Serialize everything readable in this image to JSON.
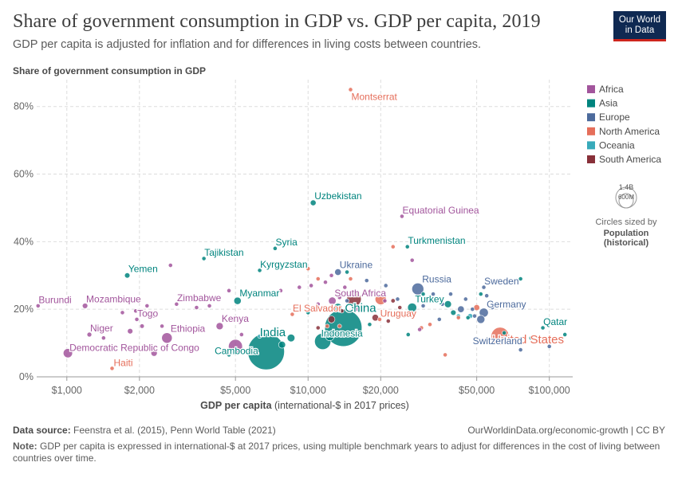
{
  "header": {
    "title": "Share of government consumption in GDP vs. GDP per capita, 2019",
    "subtitle": "GDP per capita is adjusted for inflation and for differences in living costs between countries.",
    "logo_line1": "Our World",
    "logo_line2": "in Data"
  },
  "footer": {
    "source_label": "Data source:",
    "source_text": "Feenstra et al. (2015), Penn World Table (2021)",
    "url_text": "OurWorldinData.org/economic-growth | CC BY",
    "note_label": "Note:",
    "note_text": "GDP per capita is expressed in international-$ at 2017 prices, using multiple benchmark years to adjust for differences in the cost of living between countries over time."
  },
  "colors": {
    "Africa": "#a2559c",
    "Asia": "#00847e",
    "Europe": "#4c6a9c",
    "North America": "#e56e5a",
    "Oceania": "#38aaba",
    "South America": "#883039"
  },
  "size_legend": {
    "big_label": "1.4B",
    "small_label": "600M",
    "caption1": "Circles sized by",
    "caption2": "Population",
    "caption3": "(historical)"
  },
  "chart_data": {
    "type": "scatter",
    "ylabel": "Share of government consumption in GDP",
    "xlabel_bold": "GDP per capita",
    "xlabel_rest": "(international-$ in 2017 prices)",
    "x_scale": "log",
    "xlim": [
      750,
      125000
    ],
    "ylim": [
      0,
      87
    ],
    "x_ticks": [
      {
        "v": 1000,
        "label": "$1,000"
      },
      {
        "v": 2000,
        "label": "$2,000"
      },
      {
        "v": 5000,
        "label": "$5,000"
      },
      {
        "v": 10000,
        "label": "$10,000"
      },
      {
        "v": 20000,
        "label": "$20,000"
      },
      {
        "v": 50000,
        "label": "$50,000"
      },
      {
        "v": 100000,
        "label": "$100,000"
      }
    ],
    "y_ticks": [
      {
        "v": 0,
        "label": "0%"
      },
      {
        "v": 20,
        "label": "20%"
      },
      {
        "v": 40,
        "label": "40%"
      },
      {
        "v": 60,
        "label": "60%"
      },
      {
        "v": 80,
        "label": "80%"
      }
    ],
    "grid": true,
    "legend_position": "right",
    "series": [
      {
        "name": "Africa",
        "points": [
          {
            "label": "Burundi",
            "x": 760,
            "y": 21,
            "pop": 11.5,
            "label_side": "right"
          },
          {
            "label": "Mozambique",
            "x": 1190,
            "y": 21,
            "pop": 30
          },
          {
            "label": "Niger",
            "x": 1240,
            "y": 12.5,
            "pop": 23
          },
          {
            "label": "Democratic Republic of Congo",
            "x": 1010,
            "y": 7,
            "pop": 87
          },
          {
            "label": "Togo",
            "x": 1950,
            "y": 17,
            "pop": 8
          },
          {
            "label": "Zimbabwe",
            "x": 2850,
            "y": 21.5,
            "pop": 14.6
          },
          {
            "label": "Ethiopia",
            "x": 2600,
            "y": 11.5,
            "pop": 112
          },
          {
            "label": "Kenya",
            "x": 4300,
            "y": 15,
            "pop": 52
          },
          {
            "label": "South Africa",
            "x": 12600,
            "y": 22.5,
            "pop": 58
          },
          {
            "label": "Equatorial Guinea",
            "x": 24500,
            "y": 47.5,
            "pop": 1.4
          },
          {
            "x": 1420,
            "y": 11.5,
            "pop": 10
          },
          {
            "x": 1830,
            "y": 13.5,
            "pop": 30
          },
          {
            "x": 2050,
            "y": 15,
            "pop": 20
          },
          {
            "x": 2300,
            "y": 18,
            "pop": 5
          },
          {
            "x": 2480,
            "y": 15,
            "pop": 6
          },
          {
            "x": 2150,
            "y": 21,
            "pop": 5
          },
          {
            "x": 1930,
            "y": 19.5,
            "pop": 4
          },
          {
            "x": 1700,
            "y": 19,
            "pop": 3
          },
          {
            "x": 2690,
            "y": 33,
            "pop": 2
          },
          {
            "x": 3450,
            "y": 20.5,
            "pop": 4
          },
          {
            "x": 3900,
            "y": 21,
            "pop": 5
          },
          {
            "x": 2300,
            "y": 7,
            "pop": 40
          },
          {
            "x": 4700,
            "y": 25.5,
            "pop": 8
          },
          {
            "x": 5000,
            "y": 9,
            "pop": 200
          },
          {
            "x": 5300,
            "y": 12.5,
            "pop": 6
          },
          {
            "x": 7700,
            "y": 25.5,
            "pop": 4
          },
          {
            "x": 9200,
            "y": 26.5,
            "pop": 2.5
          },
          {
            "x": 10300,
            "y": 27,
            "pop": 2
          },
          {
            "x": 11000,
            "y": 21.5,
            "pop": 2
          },
          {
            "x": 11800,
            "y": 28,
            "pop": 4
          },
          {
            "x": 12500,
            "y": 30,
            "pop": 2
          },
          {
            "x": 13500,
            "y": 23.5,
            "pop": 1.3
          },
          {
            "x": 14200,
            "y": 26.5,
            "pop": 3
          },
          {
            "x": 16000,
            "y": 20,
            "pop": 2
          },
          {
            "x": 20800,
            "y": 22.5,
            "pop": 2
          },
          {
            "x": 27000,
            "y": 34.5,
            "pop": 1.3
          },
          {
            "x": 29000,
            "y": 14,
            "pop": 1
          }
        ]
      },
      {
        "name": "Asia",
        "points": [
          {
            "label": "Uzbekistan",
            "x": 10500,
            "y": 51.5,
            "pop": 33.6
          },
          {
            "label": "Syria",
            "x": 7300,
            "y": 38,
            "pop": 17
          },
          {
            "label": "Tajikistan",
            "x": 3700,
            "y": 35,
            "pop": 9.3
          },
          {
            "label": "Yemen",
            "x": 1780,
            "y": 30,
            "pop": 29
          },
          {
            "label": "Kyrgyzstan",
            "x": 6300,
            "y": 31.5,
            "pop": 6.4
          },
          {
            "label": "Myanmar",
            "x": 5100,
            "y": 22.5,
            "pop": 54
          },
          {
            "label": "Turkmenistan",
            "x": 25800,
            "y": 38.5,
            "pop": 6
          },
          {
            "label": "India",
            "x": 6700,
            "y": 7.5,
            "pop": 1366
          },
          {
            "label": "Cambodia",
            "x": 4700,
            "y": 6.5,
            "pop": 16.5
          },
          {
            "label": "China",
            "x": 14000,
            "y": 14.5,
            "pop": 1410
          },
          {
            "label": "Indonesia",
            "x": 11500,
            "y": 10.5,
            "pop": 270
          },
          {
            "label": "Turkey",
            "x": 27000,
            "y": 20.5,
            "pop": 83
          },
          {
            "label": "Qatar",
            "x": 94000,
            "y": 14.5,
            "pop": 2.8
          },
          {
            "x": 7800,
            "y": 9.5,
            "pop": 50
          },
          {
            "x": 8500,
            "y": 11.5,
            "pop": 60
          },
          {
            "x": 10000,
            "y": 19,
            "pop": 10
          },
          {
            "x": 12300,
            "y": 12,
            "pop": 80
          },
          {
            "x": 13300,
            "y": 20.5,
            "pop": 70
          },
          {
            "x": 15500,
            "y": 21,
            "pop": 40
          },
          {
            "x": 18000,
            "y": 15.5,
            "pop": 5
          },
          {
            "x": 26000,
            "y": 12.5,
            "pop": 10
          },
          {
            "x": 38000,
            "y": 21.5,
            "pop": 50
          },
          {
            "x": 40000,
            "y": 19,
            "pop": 30
          },
          {
            "x": 46000,
            "y": 17.5,
            "pop": 10
          },
          {
            "x": 52000,
            "y": 24.5,
            "pop": 5
          },
          {
            "x": 65000,
            "y": 13,
            "pop": 7
          },
          {
            "x": 76000,
            "y": 29,
            "pop": 4.3
          },
          {
            "x": 84000,
            "y": 11.5,
            "pop": 3
          },
          {
            "x": 116000,
            "y": 12.5,
            "pop": 1.5
          },
          {
            "x": 14500,
            "y": 31,
            "pop": 4
          },
          {
            "x": 30000,
            "y": 24.5,
            "pop": 3
          }
        ]
      },
      {
        "name": "Europe",
        "points": [
          {
            "label": "Ukraine",
            "x": 13300,
            "y": 31,
            "pop": 44
          },
          {
            "label": "Russia",
            "x": 28500,
            "y": 26,
            "pop": 144
          },
          {
            "label": "Sweden",
            "x": 53500,
            "y": 26.5,
            "pop": 10
          },
          {
            "label": "Germany",
            "x": 53500,
            "y": 19,
            "pop": 83
          },
          {
            "label": "Switzerland",
            "x": 76000,
            "y": 8,
            "pop": 8.6
          },
          {
            "x": 14500,
            "y": 22.5,
            "pop": 10
          },
          {
            "x": 17500,
            "y": 28.5,
            "pop": 3
          },
          {
            "x": 21000,
            "y": 27,
            "pop": 3
          },
          {
            "x": 23500,
            "y": 23,
            "pop": 4
          },
          {
            "x": 30000,
            "y": 21,
            "pop": 5
          },
          {
            "x": 33000,
            "y": 24.5,
            "pop": 4
          },
          {
            "x": 36000,
            "y": 21.5,
            "pop": 2
          },
          {
            "x": 39000,
            "y": 24.5,
            "pop": 10
          },
          {
            "x": 43000,
            "y": 20,
            "pop": 46
          },
          {
            "x": 45000,
            "y": 23,
            "pop": 5
          },
          {
            "x": 48000,
            "y": 20,
            "pop": 11
          },
          {
            "x": 49000,
            "y": 18,
            "pop": 17
          },
          {
            "x": 52000,
            "y": 17,
            "pop": 67
          },
          {
            "x": 55000,
            "y": 24,
            "pop": 9
          },
          {
            "x": 58000,
            "y": 20.5,
            "pop": 5.5
          },
          {
            "x": 100000,
            "y": 9,
            "pop": 5
          },
          {
            "x": 72000,
            "y": 21,
            "pop": 5.4
          },
          {
            "x": 35000,
            "y": 17,
            "pop": 10
          }
        ]
      },
      {
        "name": "North America",
        "points": [
          {
            "label": "Montserrat",
            "x": 15000,
            "y": 85,
            "pop": 0.005
          },
          {
            "label": "El Salvador",
            "x": 8600,
            "y": 18.5,
            "pop": 6.5
          },
          {
            "label": "Uruguay",
            "x": 19800,
            "y": 17,
            "pop": 3.5
          },
          {
            "label": "United States",
            "x": 62500,
            "y": 12,
            "pop": 328
          },
          {
            "label": "Haiti",
            "x": 1540,
            "y": 2.5,
            "pop": 11.3
          },
          {
            "x": 10000,
            "y": 32,
            "pop": 0.1
          },
          {
            "x": 11000,
            "y": 29,
            "pop": 1.3
          },
          {
            "x": 12000,
            "y": 15,
            "pop": 5
          },
          {
            "x": 13500,
            "y": 15,
            "pop": 11
          },
          {
            "x": 15000,
            "y": 29,
            "pop": 0.2
          },
          {
            "x": 20000,
            "y": 23,
            "pop": 127
          },
          {
            "x": 22500,
            "y": 38.5,
            "pop": 0.5
          },
          {
            "x": 25000,
            "y": 18,
            "pop": 0.4
          },
          {
            "x": 29500,
            "y": 14.5,
            "pop": 2
          },
          {
            "x": 32000,
            "y": 15.5,
            "pop": 0.5
          },
          {
            "x": 37000,
            "y": 6.5,
            "pop": 0.4
          },
          {
            "x": 50000,
            "y": 20.5,
            "pop": 37
          },
          {
            "x": 42000,
            "y": 17.5,
            "pop": 0.3
          }
        ]
      },
      {
        "name": "Oceania",
        "points": [
          {
            "x": 47000,
            "y": 18,
            "pop": 25
          },
          {
            "x": 42000,
            "y": 18,
            "pop": 5
          },
          {
            "x": 4900,
            "y": 7,
            "pop": 9
          },
          {
            "x": 6300,
            "y": 12,
            "pop": 0.9
          }
        ]
      },
      {
        "name": "South America",
        "points": [
          {
            "x": 11000,
            "y": 14.5,
            "pop": 11.5
          },
          {
            "x": 12500,
            "y": 17,
            "pop": 50
          },
          {
            "x": 13800,
            "y": 19.5,
            "pop": 17
          },
          {
            "x": 15500,
            "y": 23,
            "pop": 212
          },
          {
            "x": 19000,
            "y": 17.5,
            "pop": 45
          },
          {
            "x": 22500,
            "y": 22.5,
            "pop": 19
          },
          {
            "x": 21500,
            "y": 16.5,
            "pop": 7
          },
          {
            "x": 24000,
            "y": 20.5,
            "pop": 0.8
          }
        ]
      }
    ]
  }
}
